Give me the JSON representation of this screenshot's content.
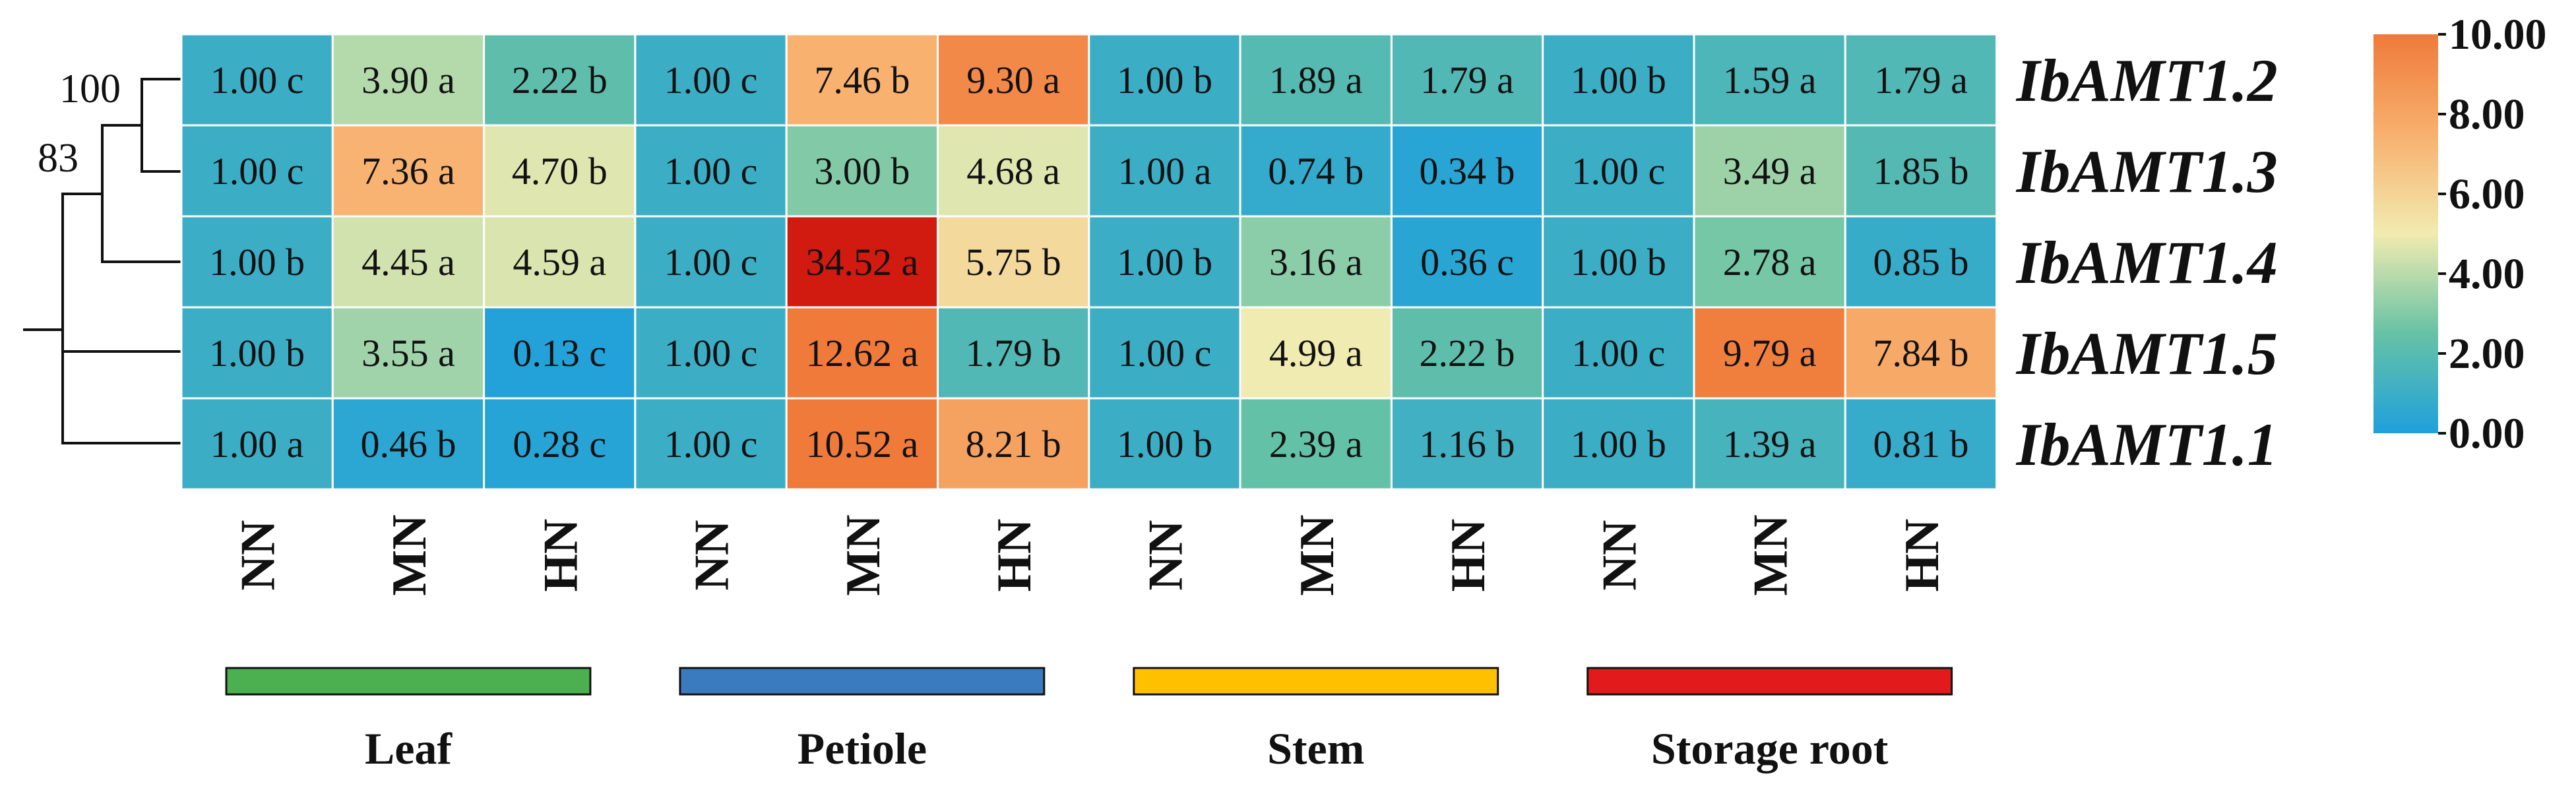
{
  "chart_data": {
    "type": "heatmap",
    "title": "",
    "rows": [
      "IbAMT1.2",
      "IbAMT1.3",
      "IbAMT1.4",
      "IbAMT1.5",
      "IbAMT1.1"
    ],
    "columns": [
      "NN",
      "MN",
      "HN",
      "NN",
      "MN",
      "HN",
      "NN",
      "MN",
      "HN",
      "NN",
      "MN",
      "HN"
    ],
    "values": [
      [
        1.0,
        3.9,
        2.22,
        1.0,
        7.46,
        9.3,
        1.0,
        1.89,
        1.79,
        1.0,
        1.59,
        1.79
      ],
      [
        1.0,
        7.36,
        4.7,
        1.0,
        3.0,
        4.68,
        1.0,
        0.74,
        0.34,
        1.0,
        3.49,
        1.85
      ],
      [
        1.0,
        4.45,
        4.59,
        1.0,
        34.52,
        5.75,
        1.0,
        3.16,
        0.36,
        1.0,
        2.78,
        0.85
      ],
      [
        1.0,
        3.55,
        0.13,
        1.0,
        12.62,
        1.79,
        1.0,
        4.99,
        2.22,
        1.0,
        9.79,
        7.84
      ],
      [
        1.0,
        0.46,
        0.28,
        1.0,
        10.52,
        8.21,
        1.0,
        2.39,
        1.16,
        1.0,
        1.39,
        0.81
      ]
    ],
    "letters": [
      [
        "c",
        "a",
        "b",
        "c",
        "b",
        "a",
        "b",
        "a",
        "a",
        "b",
        "a",
        "a"
      ],
      [
        "c",
        "a",
        "b",
        "c",
        "b",
        "a",
        "a",
        "b",
        "b",
        "c",
        "a",
        "b"
      ],
      [
        "b",
        "a",
        "a",
        "c",
        "a",
        "b",
        "b",
        "a",
        "c",
        "b",
        "a",
        "b"
      ],
      [
        "b",
        "a",
        "c",
        "c",
        "a",
        "b",
        "c",
        "a",
        "b",
        "c",
        "a",
        "b"
      ],
      [
        "a",
        "b",
        "c",
        "c",
        "a",
        "b",
        "b",
        "a",
        "b",
        "b",
        "a",
        "b"
      ]
    ],
    "groups": [
      {
        "name": "Leaf",
        "color": "#4caf50"
      },
      {
        "name": "Petiole",
        "color": "#3a7bbf"
      },
      {
        "name": "Stem",
        "color": "#ffc000"
      },
      {
        "name": "Storage root",
        "color": "#e31a1c"
      }
    ],
    "colorbar": {
      "min": 0.0,
      "max": 10.0,
      "ticks": [
        "10.00",
        "8.00",
        "6.00",
        "4.00",
        "2.00",
        "0.00"
      ],
      "tick_values": [
        10,
        8,
        6,
        4,
        2,
        0
      ],
      "colors": [
        "#1fa0dc",
        "#66c2a5",
        "#f1ebb0",
        "#f8b06e",
        "#ef7a3a"
      ]
    },
    "tree_bootstrap": [
      "100",
      "83"
    ],
    "highlight_color": "#d11a10"
  }
}
